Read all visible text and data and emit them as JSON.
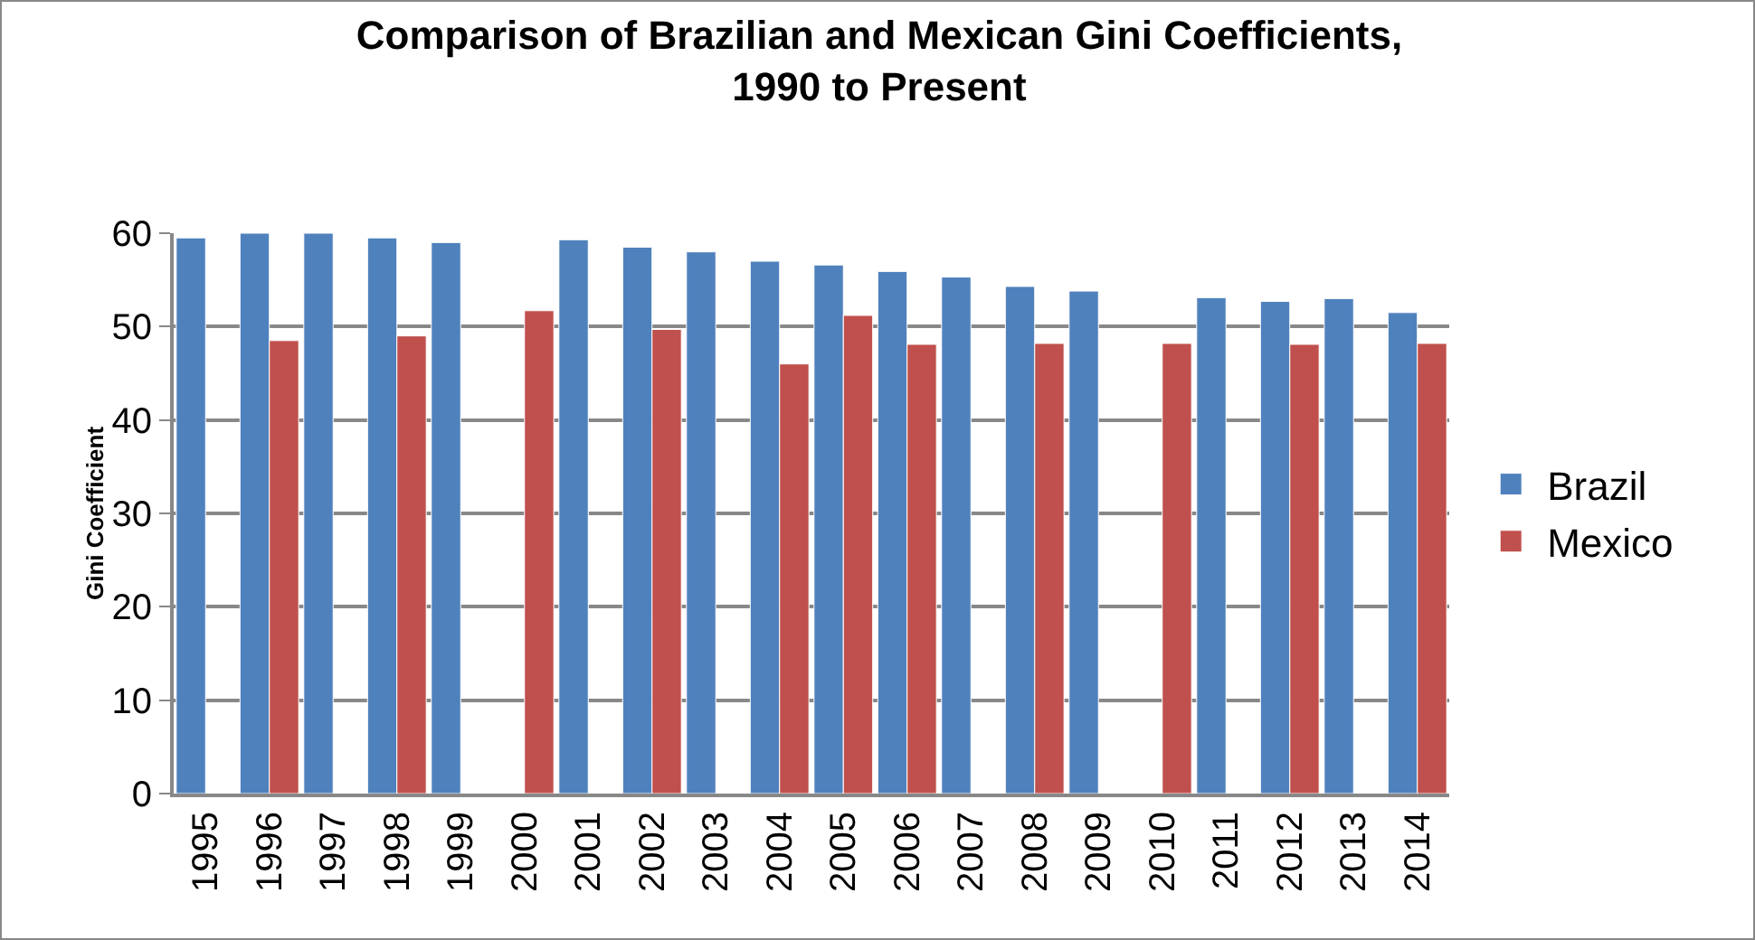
{
  "chart_data": {
    "type": "bar",
    "title": "Comparison of Brazilian and Mexican Gini Coefficients,\n1990 to Present",
    "ylabel": "Gini Coefficient",
    "categories": [
      "1995",
      "1996",
      "1997",
      "1998",
      "1999",
      "2000",
      "2001",
      "2002",
      "2003",
      "2004",
      "2005",
      "2006",
      "2007",
      "2008",
      "2009",
      "2010",
      "2011",
      "2012",
      "2013",
      "2014"
    ],
    "series": [
      {
        "name": "Brazil",
        "color": "#4f81bd",
        "values": [
          59.5,
          60,
          60,
          59.5,
          59,
          null,
          59.3,
          58.5,
          58,
          57,
          56.6,
          55.9,
          55.3,
          54.3,
          53.8,
          null,
          53.1,
          52.7,
          53,
          51.5
        ]
      },
      {
        "name": "Mexico",
        "color": "#c0504d",
        "values": [
          null,
          48.5,
          null,
          49,
          null,
          51.7,
          null,
          49.7,
          null,
          46,
          51.2,
          48.1,
          null,
          48.2,
          null,
          48.2,
          null,
          48.1,
          null,
          48.2
        ]
      }
    ],
    "ylim": [
      0,
      60
    ],
    "yticks": [
      0,
      10,
      20,
      30,
      40,
      50,
      60
    ],
    "grid": "y",
    "legend": "right"
  }
}
